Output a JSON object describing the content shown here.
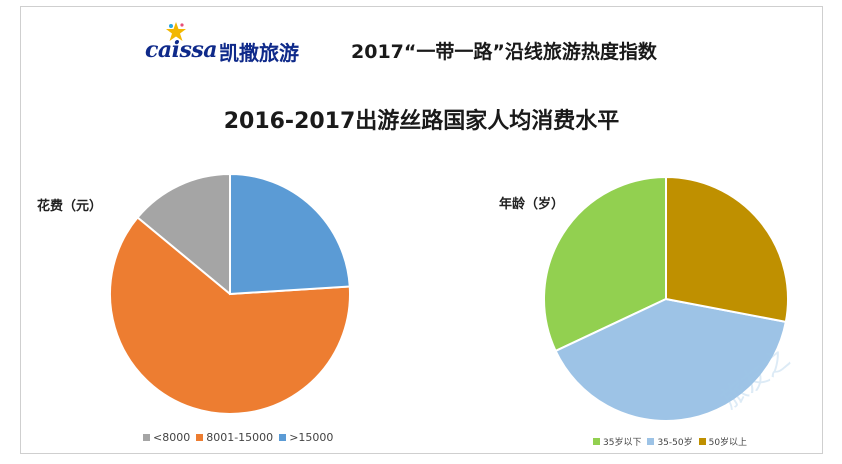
{
  "brand": {
    "logo_text": "caissa",
    "logo_cn": "凯撒旅游",
    "header_title": "2017“一带一路”沿线旅游热度指数"
  },
  "chart_title": "2016-2017出游丝路国家人均消费水平",
  "chart_data": [
    {
      "type": "pie",
      "title": "花费（元）",
      "categories": [
        "<8000",
        "8001-15000",
        ">15000"
      ],
      "values": [
        14,
        62,
        24
      ],
      "colors": [
        "#a5a5a5",
        "#ed7d31",
        "#5b9bd5"
      ],
      "legend_placement": "bottom-left"
    },
    {
      "type": "pie",
      "title": "年龄（岁）",
      "categories": [
        "35岁以下",
        "35-50岁",
        "50岁以上"
      ],
      "values": [
        32,
        40,
        28
      ],
      "colors": [
        "#92d050",
        "#9dc3e6",
        "#bf9000"
      ],
      "legend_placement": "bottom-right"
    }
  ],
  "watermark": "旅友之"
}
